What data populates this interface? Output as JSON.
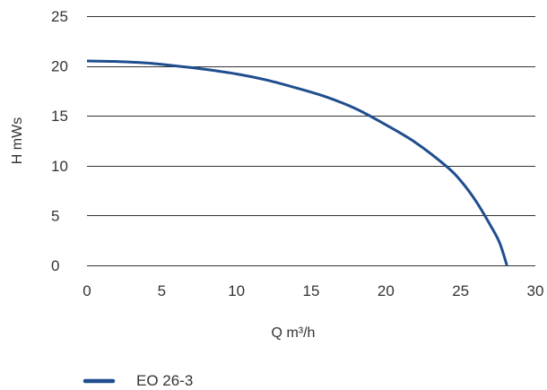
{
  "chart_data": {
    "type": "line",
    "xlabel": "Q m³/h",
    "ylabel": "H mWs",
    "xlim": [
      0,
      30
    ],
    "ylim": [
      0,
      25
    ],
    "xticks": [
      "0",
      "5",
      "10",
      "15",
      "20",
      "25",
      "30"
    ],
    "yticks": [
      "0",
      "5",
      "10",
      "15",
      "20",
      "25"
    ],
    "grid": "horizontal",
    "legend": "bottom-left",
    "series": [
      {
        "name": "EO 26-3",
        "x": [
          0,
          2,
          4,
          6,
          8,
          10,
          12,
          14,
          16,
          18,
          20,
          22,
          24,
          25,
          26,
          27,
          27.6,
          28.1
        ],
        "y": [
          20.5,
          20.45,
          20.3,
          20.0,
          19.65,
          19.2,
          18.6,
          17.8,
          16.9,
          15.7,
          14.1,
          12.3,
          10.0,
          8.5,
          6.5,
          4.0,
          2.3,
          0
        ]
      }
    ]
  },
  "colors": {
    "series": "#1f4e8f",
    "grid": "#333333",
    "text": "#333333",
    "background": "#ffffff"
  }
}
